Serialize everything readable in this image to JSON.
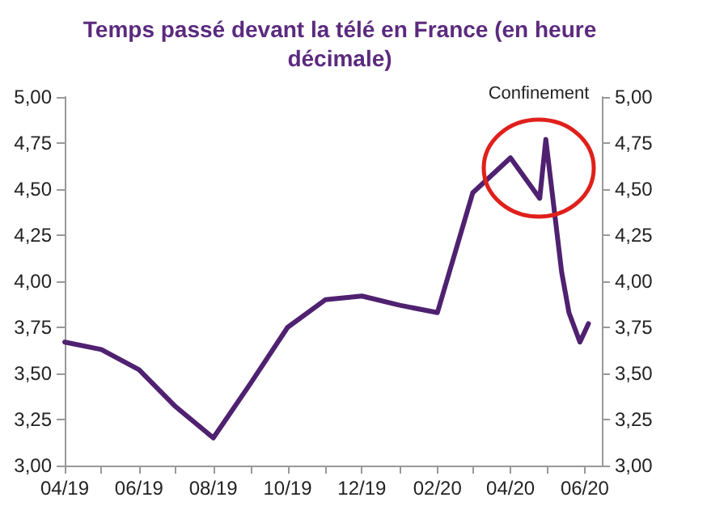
{
  "chart_data": {
    "type": "line",
    "title": "Temps passé devant la télé en France (en heure\ndécimale)",
    "x": [
      "2019-04-01",
      "2019-05-01",
      "2019-06-01",
      "2019-07-01",
      "2019-08-01",
      "2019-09-01",
      "2019-10-01",
      "2019-11-01",
      "2019-12-01",
      "2020-01-01",
      "2020-02-01",
      "2020-03-01",
      "2020-04-01",
      "2020-04-25",
      "2020-04-30",
      "2020-05-13",
      "2020-05-19",
      "2020-05-28",
      "2020-06-04"
    ],
    "series": [
      {
        "color": "#4f2170",
        "values": [
          3.67,
          3.63,
          3.52,
          3.32,
          3.15,
          3.45,
          3.75,
          3.9,
          3.92,
          3.87,
          3.83,
          4.48,
          4.67,
          4.45,
          4.77,
          4.05,
          3.83,
          3.67,
          3.77
        ]
      }
    ],
    "xlim": [
      "2019-04-01",
      "2020-06-15"
    ],
    "xticks": [
      {
        "value": "2019-04-01",
        "label": "04/19"
      },
      {
        "value": "2019-05-01",
        "label": null
      },
      {
        "value": "2019-06-01",
        "label": "06/19"
      },
      {
        "value": "2019-07-01",
        "label": null
      },
      {
        "value": "2019-08-01",
        "label": "08/19"
      },
      {
        "value": "2019-09-01",
        "label": null
      },
      {
        "value": "2019-10-01",
        "label": "10/19"
      },
      {
        "value": "2019-11-01",
        "label": null
      },
      {
        "value": "2019-12-01",
        "label": "12/19"
      },
      {
        "value": "2020-01-01",
        "label": null
      },
      {
        "value": "2020-02-01",
        "label": "02/20"
      },
      {
        "value": "2020-03-01",
        "label": null
      },
      {
        "value": "2020-04-01",
        "label": "04/20"
      },
      {
        "value": "2020-05-01",
        "label": null
      },
      {
        "value": "2020-06-01",
        "label": "06/20"
      }
    ],
    "ylim": [
      3,
      5
    ],
    "yticks": [
      {
        "value": 3,
        "label": "3,00"
      },
      {
        "value": 3.25,
        "label": "3,25"
      },
      {
        "value": 3.5,
        "label": "3,50"
      },
      {
        "value": 3.75,
        "label": "3,75"
      },
      {
        "value": 4,
        "label": "4,00"
      },
      {
        "value": 4.25,
        "label": "4,25"
      },
      {
        "value": 4.5,
        "label": "4,50"
      },
      {
        "value": 4.75,
        "label": "4,75"
      },
      {
        "value": 5,
        "label": "5,00"
      }
    ],
    "y2lim": [
      3,
      5
    ],
    "y2ticks": [
      {
        "value": 3,
        "label": "3,00"
      },
      {
        "value": 3.25,
        "label": "3,25"
      },
      {
        "value": 3.5,
        "label": "3,50"
      },
      {
        "value": 3.75,
        "label": "3,75"
      },
      {
        "value": 4,
        "label": "4,00"
      },
      {
        "value": 4.25,
        "label": "4,25"
      },
      {
        "value": 4.5,
        "label": "4,50"
      },
      {
        "value": 4.75,
        "label": "4,75"
      },
      {
        "value": 5,
        "label": "5,00"
      }
    ],
    "annotations": [
      "Confinement"
    ],
    "grid": false,
    "marker": "none",
    "line_style": "solid"
  }
}
